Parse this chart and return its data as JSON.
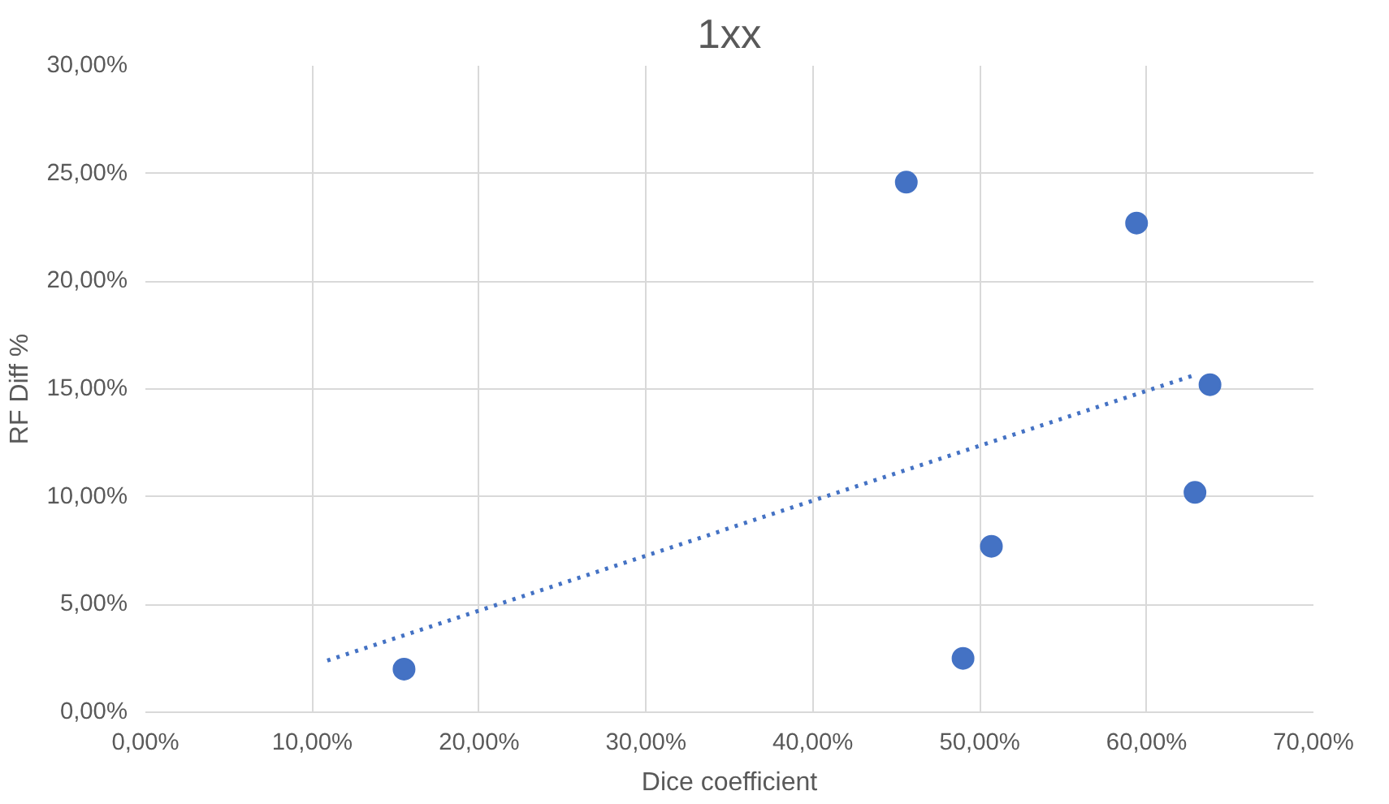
{
  "chart_data": {
    "type": "scatter",
    "title": "1xx",
    "xlabel": "Dice coefficient",
    "ylabel": "RF Diff %",
    "xlim": [
      0,
      70
    ],
    "ylim": [
      0,
      30
    ],
    "xticks": [
      {
        "value": 0,
        "label": "0,00%"
      },
      {
        "value": 10,
        "label": "10,00%"
      },
      {
        "value": 20,
        "label": "20,00%"
      },
      {
        "value": 30,
        "label": "30,00%"
      },
      {
        "value": 40,
        "label": "40,00%"
      },
      {
        "value": 50,
        "label": "50,00%"
      },
      {
        "value": 60,
        "label": "60,00%"
      },
      {
        "value": 70,
        "label": "70,00%"
      }
    ],
    "yticks": [
      {
        "value": 0,
        "label": "0,00%"
      },
      {
        "value": 5,
        "label": "5,00%"
      },
      {
        "value": 10,
        "label": "10,00%"
      },
      {
        "value": 15,
        "label": "15,00%"
      },
      {
        "value": 20,
        "label": "20,00%"
      },
      {
        "value": 25,
        "label": "25,00%"
      },
      {
        "value": 30,
        "label": "30,00%"
      }
    ],
    "grid": true,
    "series": [
      {
        "marker": "circle",
        "color": "#4472c4",
        "x": [
          15.5,
          45.6,
          49.0,
          50.7,
          59.4,
          62.9,
          63.8
        ],
        "values": [
          2.0,
          24.6,
          2.5,
          7.7,
          22.7,
          10.2,
          15.2
        ]
      },
      {
        "type": "line",
        "marker": "none",
        "line_style": "dotted",
        "color": "#4472c4",
        "x": [
          10.9,
          62.7
        ],
        "values": [
          2.4,
          15.6
        ]
      }
    ]
  }
}
